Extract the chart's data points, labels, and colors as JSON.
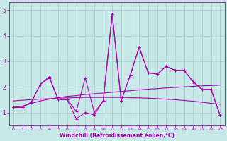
{
  "x": [
    0,
    1,
    2,
    3,
    4,
    5,
    6,
    7,
    8,
    9,
    10,
    11,
    12,
    13,
    14,
    15,
    16,
    17,
    18,
    19,
    20,
    21,
    22,
    23
  ],
  "line1": [
    1.2,
    1.2,
    1.4,
    2.1,
    2.4,
    1.5,
    1.5,
    0.75,
    1.0,
    0.9,
    1.45,
    4.85,
    1.45,
    2.45,
    3.55,
    2.55,
    2.5,
    2.8,
    2.65,
    2.65,
    2.2,
    1.9,
    1.9,
    0.9
  ],
  "line2": [
    1.2,
    1.2,
    1.4,
    2.1,
    2.35,
    1.5,
    1.5,
    1.05,
    2.35,
    1.0,
    1.45,
    4.85,
    1.45,
    2.45,
    3.55,
    2.55,
    2.5,
    2.8,
    2.65,
    2.65,
    2.2,
    1.9,
    1.9,
    0.9
  ],
  "trend1": [
    1.2,
    1.25,
    1.35,
    1.45,
    1.52,
    1.58,
    1.63,
    1.66,
    1.7,
    1.73,
    1.76,
    1.79,
    1.82,
    1.85,
    1.88,
    1.91,
    1.93,
    1.96,
    1.98,
    2.0,
    2.02,
    2.04,
    2.05,
    2.07
  ],
  "trend2": [
    1.45,
    1.48,
    1.5,
    1.52,
    1.54,
    1.56,
    1.57,
    1.58,
    1.59,
    1.59,
    1.59,
    1.59,
    1.59,
    1.58,
    1.57,
    1.56,
    1.54,
    1.52,
    1.5,
    1.47,
    1.44,
    1.4,
    1.36,
    1.32
  ],
  "background_color": "#c8e8e8",
  "line_color": "#aa00aa",
  "grid_color": "#a0cccc",
  "xlabel": "Windchill (Refroidissement éolien,°C)",
  "ylim": [
    0.5,
    5.3
  ],
  "xlim": [
    -0.5,
    23.5
  ],
  "yticks": [
    1,
    2,
    3,
    4,
    5
  ],
  "xticks": [
    0,
    1,
    2,
    3,
    4,
    5,
    6,
    7,
    8,
    9,
    10,
    11,
    12,
    13,
    14,
    15,
    16,
    17,
    18,
    19,
    20,
    21,
    22,
    23
  ]
}
